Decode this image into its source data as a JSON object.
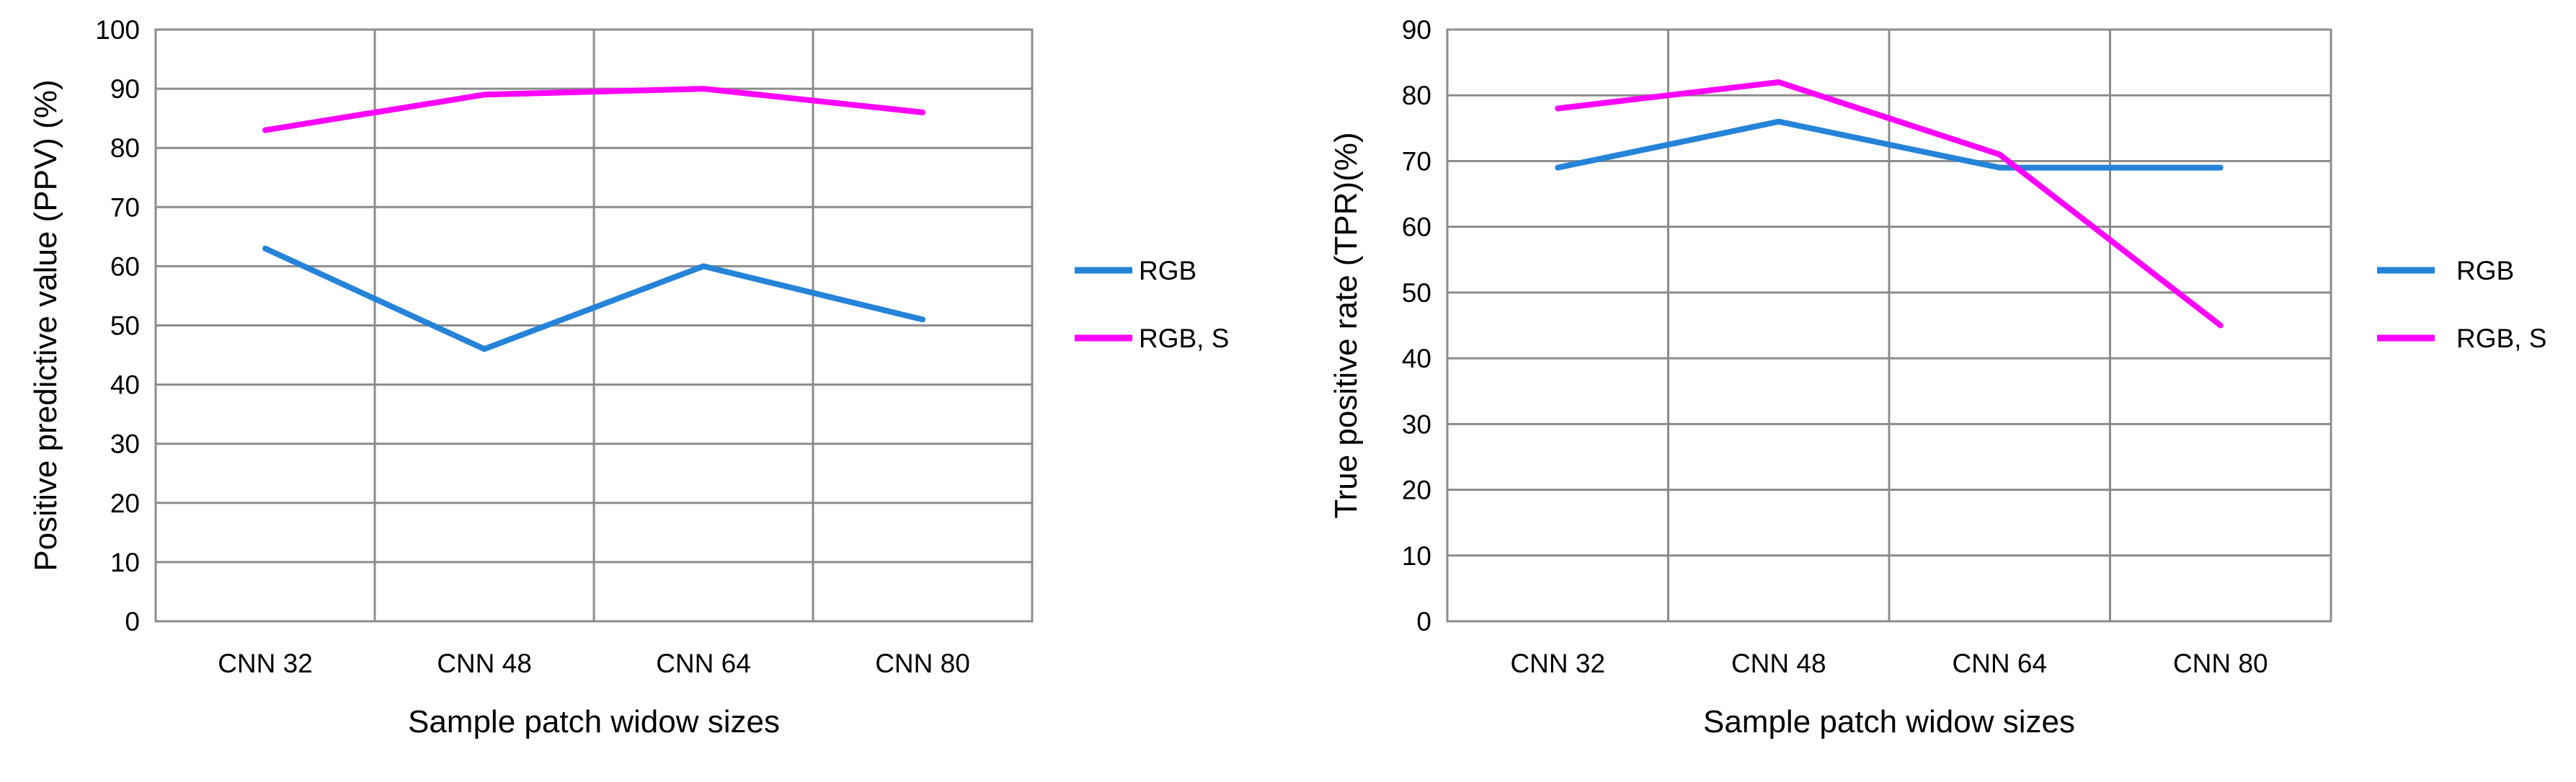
{
  "colors": {
    "rgb": "#2583D8",
    "rgb_s": "#FF00FF",
    "grid": "#8C8C8C",
    "frame": "#8C8C8C",
    "background": "#FFFFFF"
  },
  "chart_data": [
    {
      "type": "line",
      "categories": [
        "CNN 32",
        "CNN 48",
        "CNN 64",
        "CNN 80"
      ],
      "xlabel": "Sample patch widow sizes",
      "ylabel": "Positive predictive value (PPV) (%)",
      "ylim": [
        0,
        100
      ],
      "yticks": [
        0,
        10,
        20,
        30,
        40,
        50,
        60,
        70,
        80,
        90,
        100
      ],
      "grid": true,
      "legend_position": "right",
      "series": [
        {
          "name": "RGB",
          "values": [
            63,
            46,
            60,
            51
          ]
        },
        {
          "name": "RGB, S",
          "values": [
            83,
            89,
            90,
            86
          ]
        }
      ]
    },
    {
      "type": "line",
      "categories": [
        "CNN 32",
        "CNN 48",
        "CNN 64",
        "CNN 80"
      ],
      "xlabel": "Sample patch widow sizes",
      "ylabel": "True positive rate (TPR)(%)",
      "ylim": [
        0,
        90
      ],
      "yticks": [
        0,
        10,
        20,
        30,
        40,
        50,
        60,
        70,
        80,
        90
      ],
      "grid": true,
      "legend_position": "right",
      "series": [
        {
          "name": "RGB",
          "values": [
            69,
            76,
            69,
            69
          ]
        },
        {
          "name": "RGB, S",
          "values": [
            78,
            82,
            71,
            45
          ]
        }
      ]
    }
  ]
}
